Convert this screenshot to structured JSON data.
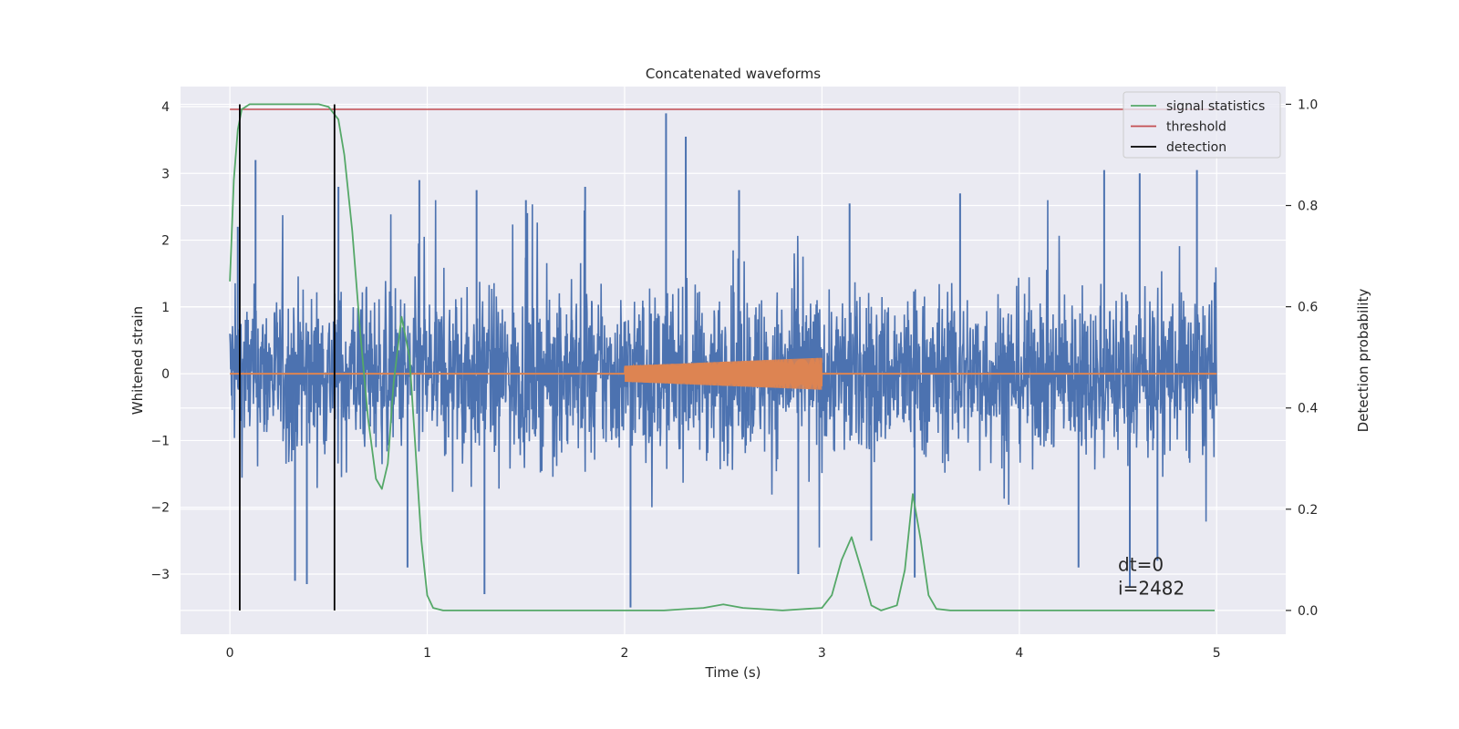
{
  "chart_data": {
    "type": "line",
    "title": "Concatenated waveforms",
    "xlabel": "Time (s)",
    "ylabel": "Whitened strain",
    "y2label": "Detection probability",
    "xlim": [
      -0.25,
      5.35
    ],
    "ylim": [
      -3.9,
      4.3
    ],
    "y2lim": [
      -0.047,
      1.035
    ],
    "xticks": [
      0,
      1,
      2,
      3,
      4,
      5
    ],
    "yticks": [
      -3,
      -2,
      -1,
      0,
      1,
      2,
      3,
      4
    ],
    "y2ticks": [
      0.0,
      0.2,
      0.4,
      0.6,
      0.8,
      1.0
    ],
    "y2tick_labels": [
      "0.0",
      "0.2",
      "0.4",
      "0.6",
      "0.8",
      "1.0"
    ],
    "grid": true,
    "legend_position": "top-right",
    "series": [
      {
        "name": "",
        "kind": "noise",
        "axis": "left",
        "x_range": [
          0,
          5
        ],
        "typical_amplitude": [
          -1.8,
          2.1
        ],
        "color": "#4c72b0",
        "spikes": [
          {
            "x": 0.04,
            "y": 2.2
          },
          {
            "x": 0.13,
            "y": 3.2
          },
          {
            "x": 0.33,
            "y": -3.1
          },
          {
            "x": 0.39,
            "y": -3.15
          },
          {
            "x": 0.55,
            "y": 2.8
          },
          {
            "x": 0.9,
            "y": -2.9
          },
          {
            "x": 0.96,
            "y": 2.9
          },
          {
            "x": 1.25,
            "y": 2.75
          },
          {
            "x": 1.29,
            "y": -3.3
          },
          {
            "x": 1.5,
            "y": 2.6
          },
          {
            "x": 1.8,
            "y": 2.8
          },
          {
            "x": 2.03,
            "y": -3.5
          },
          {
            "x": 2.21,
            "y": 3.9
          },
          {
            "x": 2.31,
            "y": 3.55
          },
          {
            "x": 2.58,
            "y": 2.75
          },
          {
            "x": 2.88,
            "y": -3.0
          },
          {
            "x": 3.14,
            "y": 2.55
          },
          {
            "x": 3.47,
            "y": -3.05
          },
          {
            "x": 3.7,
            "y": 2.7
          },
          {
            "x": 4.3,
            "y": -2.9
          },
          {
            "x": 4.43,
            "y": 3.05
          },
          {
            "x": 4.56,
            "y": -3.2
          },
          {
            "x": 4.61,
            "y": 3.0
          },
          {
            "x": 4.9,
            "y": 3.05
          },
          {
            "x": 4.7,
            "y": -2.8
          },
          {
            "x": 3.25,
            "y": -2.5
          }
        ]
      },
      {
        "name": "",
        "kind": "chirp",
        "axis": "left",
        "color": "#dd8452",
        "x": [
          0,
          2.0,
          2.0,
          2.5,
          3.0,
          3.0,
          5.0
        ],
        "y": [
          0,
          0,
          0.12,
          0.17,
          0.24,
          0,
          0
        ]
      },
      {
        "name": "signal statistics",
        "axis": "right",
        "color": "#55a868",
        "x": [
          0.0,
          0.02,
          0.04,
          0.06,
          0.1,
          0.2,
          0.45,
          0.5,
          0.55,
          0.58,
          0.62,
          0.66,
          0.7,
          0.74,
          0.77,
          0.8,
          0.83,
          0.87,
          0.91,
          0.94,
          0.97,
          1.0,
          1.03,
          1.08,
          1.2,
          2.2,
          2.4,
          2.5,
          2.6,
          2.8,
          3.0,
          3.05,
          3.1,
          3.15,
          3.2,
          3.25,
          3.3,
          3.38,
          3.42,
          3.46,
          3.5,
          3.54,
          3.58,
          3.65,
          4.99
        ],
        "y": [
          0.65,
          0.85,
          0.95,
          0.99,
          1.0,
          1.0,
          1.0,
          0.995,
          0.97,
          0.9,
          0.75,
          0.55,
          0.38,
          0.26,
          0.24,
          0.29,
          0.45,
          0.58,
          0.5,
          0.32,
          0.14,
          0.03,
          0.005,
          0.0,
          0.0,
          0.0,
          0.005,
          0.012,
          0.005,
          0.0,
          0.005,
          0.03,
          0.1,
          0.145,
          0.08,
          0.01,
          0.0,
          0.01,
          0.08,
          0.23,
          0.14,
          0.03,
          0.003,
          0.0,
          0.0
        ]
      },
      {
        "name": "threshold",
        "axis": "right",
        "color": "#c44e52",
        "x": [
          0,
          5
        ],
        "y": [
          0.99,
          0.99
        ]
      },
      {
        "name": "detection",
        "axis": "right",
        "kind": "vlines",
        "color": "#000000",
        "x": [
          0.05,
          0.53
        ],
        "y": [
          0.0,
          1.0
        ]
      }
    ],
    "annotation": [
      "dt=0",
      "i=2482"
    ],
    "annotation_position": [
      4.5,
      -3.2
    ],
    "plot_background": "#eaeaf2",
    "grid_color": "#ffffff"
  }
}
